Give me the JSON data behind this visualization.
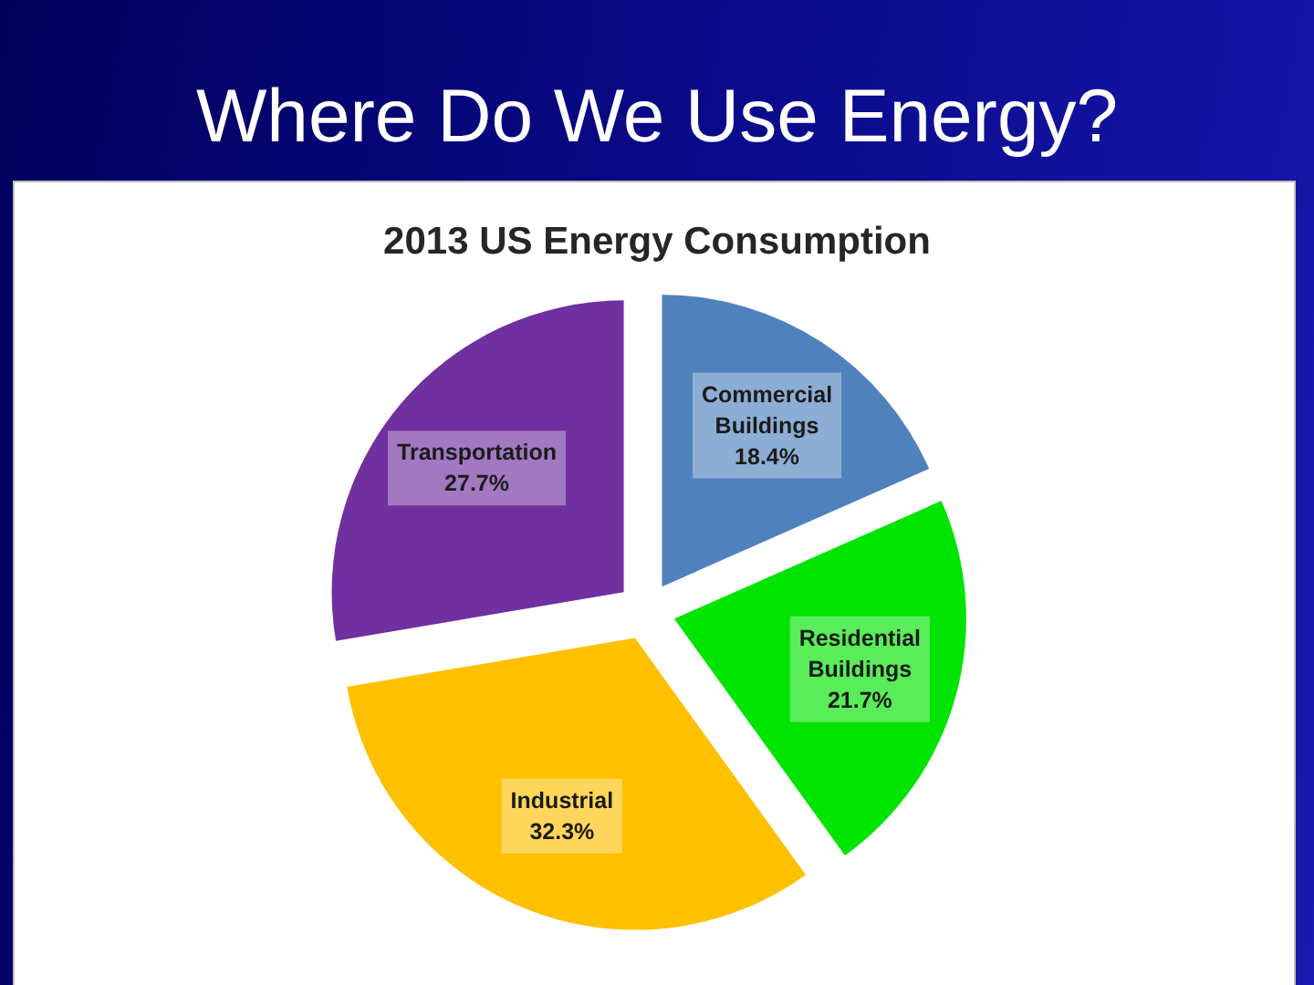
{
  "chart_data": {
    "type": "pie",
    "title": "Where Do We Use Energy?",
    "subtitle": "2013 US Energy Consumption",
    "categories": [
      "Commercial Buildings",
      "Residential Buildings",
      "Industrial",
      "Transportation"
    ],
    "values": [
      18.4,
      21.7,
      32.3,
      27.7
    ],
    "colors": [
      "#4f81bd",
      "#00e400",
      "#ffc000",
      "#7030a0"
    ],
    "value_labels": [
      "18.4%",
      "21.7%",
      "32.3%",
      "27.7%"
    ]
  }
}
